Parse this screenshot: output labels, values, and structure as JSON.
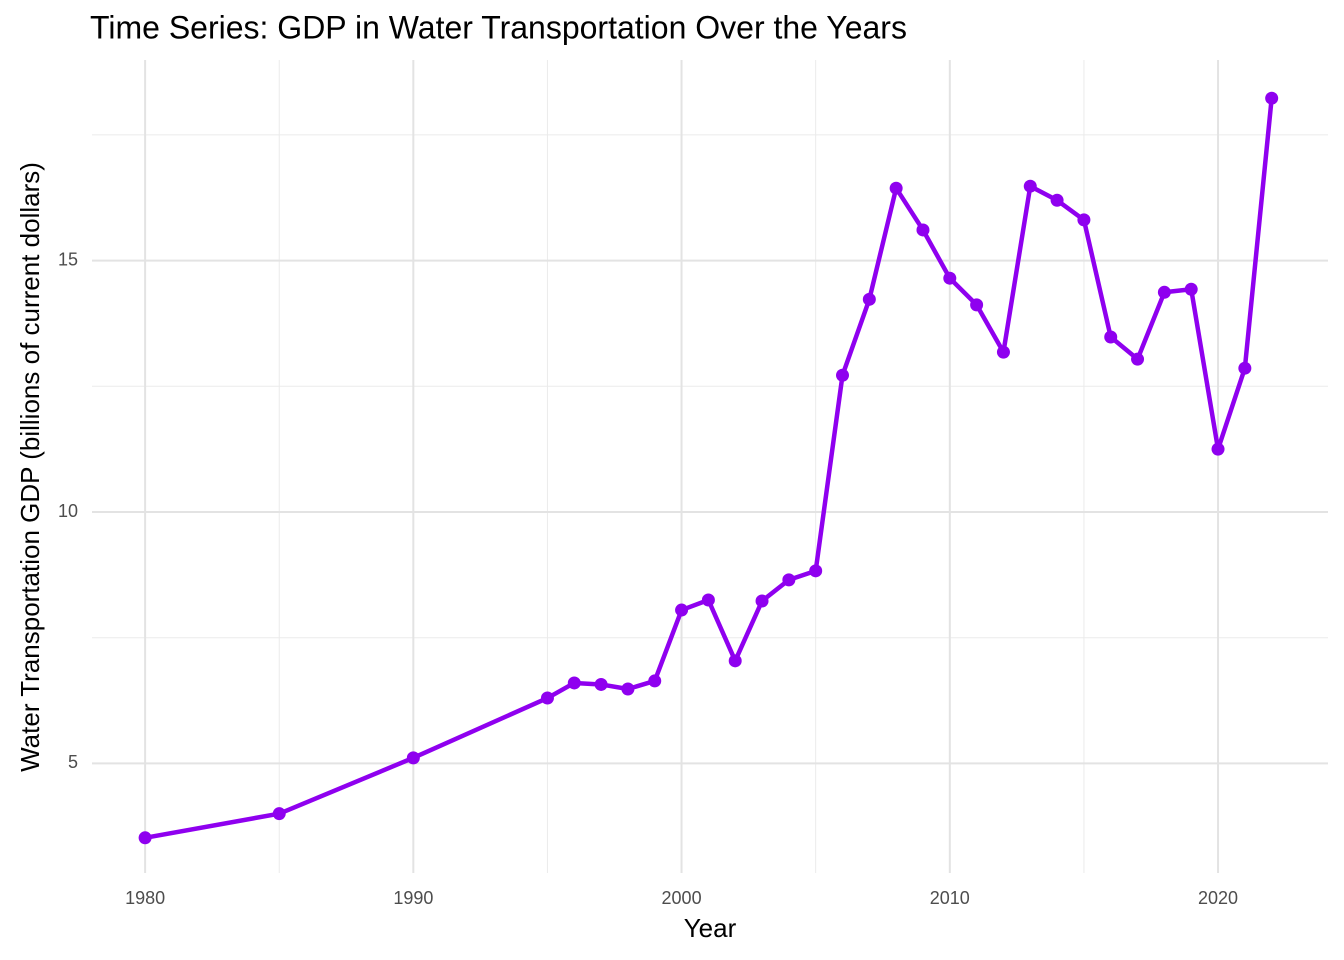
{
  "chart_data": {
    "type": "line",
    "title": "Time Series: GDP in Water Transportation Over the Years",
    "x_label": "Year",
    "y_label": "Water Transportation GDP (billions of current dollars)",
    "x": [
      1980,
      1985,
      1990,
      1995,
      1996,
      1997,
      1998,
      1999,
      2000,
      2001,
      2002,
      2003,
      2004,
      2005,
      2006,
      2007,
      2008,
      2009,
      2010,
      2011,
      2012,
      2013,
      2014,
      2015,
      2016,
      2017,
      2018,
      2019,
      2020,
      2021,
      2022
    ],
    "series": [
      {
        "name": "GDP",
        "color": "#8f00ef",
        "values": [
          3.52,
          4.0,
          5.11,
          6.3,
          6.6,
          6.57,
          6.48,
          6.64,
          8.05,
          8.25,
          7.04,
          8.23,
          8.65,
          8.83,
          12.72,
          14.23,
          16.44,
          15.61,
          14.65,
          14.12,
          13.18,
          16.48,
          16.2,
          15.81,
          13.48,
          13.04,
          14.37,
          14.43,
          11.25,
          12.86,
          18.23
        ]
      }
    ],
    "xlim": [
      1978.02,
      2024.1
    ],
    "xticks": [
      1980,
      1990,
      2000,
      2010,
      2020
    ],
    "ylim": [
      2.82,
      18.99
    ],
    "yticks": [
      5,
      10,
      15
    ],
    "grid": true
  }
}
